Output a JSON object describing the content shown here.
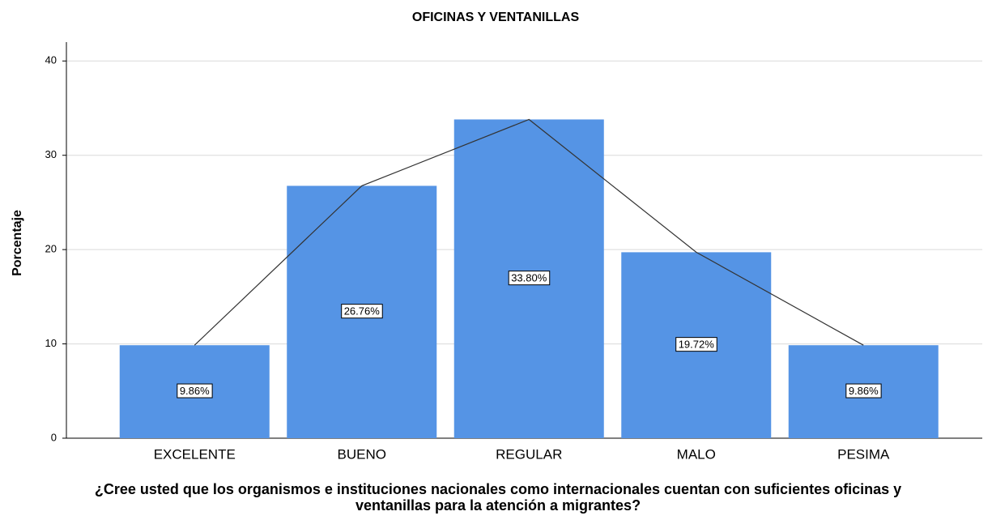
{
  "chart_data": {
    "type": "bar",
    "title": "OFICINAS Y VENTANILLAS",
    "ylabel": "Porcentaje",
    "xlabel": "¿Cree usted que los organismos e instituciones nacionales como internacionales cuentan con suficientes oficinas y ventanillas para la atención a migrantes?",
    "categories": [
      "EXCELENTE",
      "BUENO",
      "REGULAR",
      "MALO",
      "PESIMA"
    ],
    "values": [
      9.86,
      26.76,
      33.8,
      19.72,
      9.86
    ],
    "value_labels": [
      "9.86%",
      "26.76%",
      "33.80%",
      "19.72%",
      "9.86%"
    ],
    "color": "#5594e5",
    "line_color": "#333333",
    "ylim": [
      0,
      42
    ],
    "yticks": [
      0,
      10,
      20,
      30,
      40
    ],
    "grid": true
  }
}
